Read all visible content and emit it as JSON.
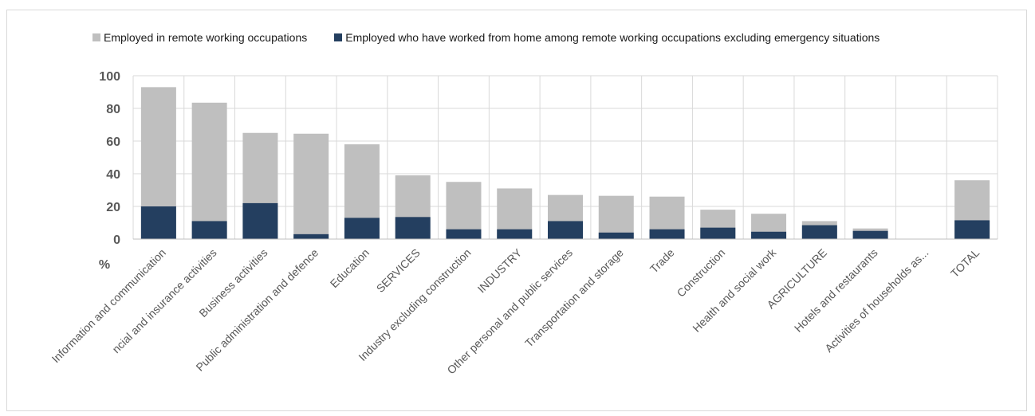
{
  "chart_data": {
    "type": "bar",
    "stacked": false,
    "overlapped": true,
    "categories": [
      "Information and communication",
      "ncial and insurance activities",
      "Business activities",
      "Public administration and defence",
      "Education",
      "SERVICES",
      "Industry excluding construction",
      "INDUSTRY",
      "Other personal and public services",
      "Transportation and storage",
      "Trade",
      "Construction",
      "Health and social work",
      "AGRICULTURE",
      "Hotels and restaurants",
      "Activities of households as...",
      "TOTAL"
    ],
    "series": [
      {
        "name": "Employed in remote working occupations",
        "color": "#bfbfbf",
        "values": [
          93,
          83.5,
          65,
          64.5,
          58,
          39,
          35,
          31,
          27,
          26.5,
          26,
          18,
          15.5,
          11,
          6.5,
          0,
          36
        ]
      },
      {
        "name": "Employed who have worked from home among remote working occupations excluding emergency situations",
        "color": "#243f60",
        "values": [
          20,
          11,
          22,
          3,
          13,
          13.5,
          6,
          6,
          11,
          4,
          6,
          7,
          4.5,
          8.5,
          5,
          0,
          11.5
        ]
      }
    ],
    "ylabel": "%",
    "yticks": [
      0,
      20,
      40,
      60,
      80,
      100
    ],
    "ylim": [
      0,
      100
    ],
    "grid": true,
    "legend": "top-left"
  }
}
